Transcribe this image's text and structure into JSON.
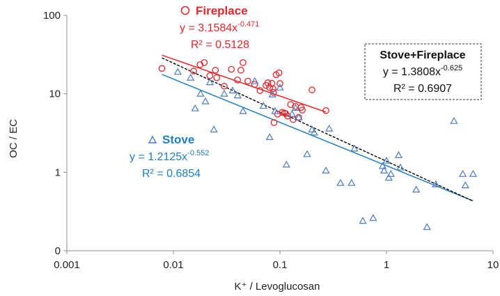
{
  "chart_data": {
    "type": "scatter",
    "xlabel": "K⁺ / Levoglucosan",
    "ylabel": "OC / EC",
    "x_scale": "log",
    "y_scale": "log",
    "xlim": [
      0.001,
      10
    ],
    "ylim": [
      0.1,
      100
    ],
    "x_ticks": [
      0.001,
      0.01,
      0.1,
      1,
      10
    ],
    "x_tick_labels": [
      "0.001",
      "0.01",
      "0.1",
      "1",
      "10"
    ],
    "y_ticks": [
      0.1,
      1,
      10,
      100
    ],
    "y_tick_labels": [
      "0",
      "1",
      "10",
      "100"
    ],
    "grid": false,
    "colors": {
      "fireplace": "#e8262b",
      "stove": "#4a7cc4",
      "stove_label": "#1f7fc4",
      "combined": "#000000"
    },
    "series": [
      {
        "name": "Fireplace",
        "marker": "circle",
        "color": "#e8262b",
        "points": [
          [
            0.0078,
            21
          ],
          [
            0.0155,
            19.5
          ],
          [
            0.0178,
            23.5
          ],
          [
            0.0195,
            25
          ],
          [
            0.022,
            17
          ],
          [
            0.0248,
            20
          ],
          [
            0.0255,
            16
          ],
          [
            0.03,
            12.5
          ],
          [
            0.035,
            20.5
          ],
          [
            0.04,
            15
          ],
          [
            0.043,
            20
          ],
          [
            0.045,
            25
          ],
          [
            0.05,
            14.5
          ],
          [
            0.058,
            13.2
          ],
          [
            0.065,
            11
          ],
          [
            0.074,
            12.8
          ],
          [
            0.077,
            13.8
          ],
          [
            0.08,
            12
          ],
          [
            0.084,
            13.6
          ],
          [
            0.086,
            11.6
          ],
          [
            0.087,
            10.4
          ],
          [
            0.088,
            4.3
          ],
          [
            0.092,
            17.5
          ],
          [
            0.098,
            18.5
          ],
          [
            0.1,
            13.5
          ],
          [
            0.105,
            5.8
          ],
          [
            0.11,
            5.7
          ],
          [
            0.113,
            5.6
          ],
          [
            0.126,
            7.3
          ],
          [
            0.133,
            4.7
          ],
          [
            0.14,
            6.9
          ],
          [
            0.15,
            5
          ],
          [
            0.158,
            6.7
          ],
          [
            0.2,
            11.2
          ],
          [
            0.27,
            6.1
          ],
          [
            0.162,
            6.2
          ],
          [
            0.118,
            5.2
          ],
          [
            0.095,
            5.5
          ]
        ],
        "fit": {
          "label": "y = 3.1584x",
          "exponent": "-0.471",
          "r2": "R² = 0.5128",
          "a": 3.1584,
          "b": -0.471,
          "x_range": [
            0.0078,
            0.27
          ]
        }
      },
      {
        "name": "Stove",
        "marker": "triangle",
        "color": "#4a7cc4",
        "points": [
          [
            0.011,
            19
          ],
          [
            0.0145,
            16
          ],
          [
            0.016,
            6.5
          ],
          [
            0.018,
            10
          ],
          [
            0.02,
            8
          ],
          [
            0.022,
            14
          ],
          [
            0.024,
            3.5
          ],
          [
            0.03,
            10
          ],
          [
            0.036,
            11
          ],
          [
            0.04,
            9.5
          ],
          [
            0.045,
            6
          ],
          [
            0.07,
            7
          ],
          [
            0.08,
            2.8
          ],
          [
            0.09,
            6
          ],
          [
            0.1,
            12
          ],
          [
            0.115,
            1.25
          ],
          [
            0.13,
            5.5
          ],
          [
            0.15,
            5
          ],
          [
            0.18,
            1.7
          ],
          [
            0.21,
            3.2
          ],
          [
            0.27,
            1.05
          ],
          [
            0.29,
            3.6
          ],
          [
            0.37,
            0.73
          ],
          [
            0.47,
            0.73
          ],
          [
            0.5,
            2
          ],
          [
            0.6,
            0.24
          ],
          [
            0.75,
            0.26
          ],
          [
            0.92,
            1.2
          ],
          [
            1.0,
            1.4
          ],
          [
            1.05,
            0.85
          ],
          [
            1.1,
            0.95
          ],
          [
            1.3,
            1.65
          ],
          [
            1.35,
            1.15
          ],
          [
            1.9,
            0.6
          ],
          [
            2.4,
            0.2
          ],
          [
            2.9,
            0.7
          ],
          [
            4.3,
            4.5
          ],
          [
            5.2,
            0.95
          ],
          [
            5.5,
            0.68
          ],
          [
            6.5,
            0.95
          ],
          [
            0.058,
            14.5
          ],
          [
            0.2,
            3.5
          ],
          [
            0.085,
            9.8
          ],
          [
            0.14,
            6.6
          ],
          [
            0.95,
            1.05
          ]
        ],
        "fit": {
          "label": "y = 1.2125x",
          "exponent": "-0.552",
          "r2": "R² = 0.6854",
          "a": 1.2125,
          "b": -0.552,
          "x_range": [
            0.0078,
            6.5
          ]
        }
      }
    ],
    "combined_fit": {
      "name": "Stove+Fireplace",
      "label": "y = 1.3808x",
      "exponent": "-0.625",
      "r2": "R² = 0.6907",
      "a": 1.3808,
      "b": -0.625,
      "x_range": [
        0.0078,
        6.5
      ],
      "style": "dashed"
    }
  }
}
